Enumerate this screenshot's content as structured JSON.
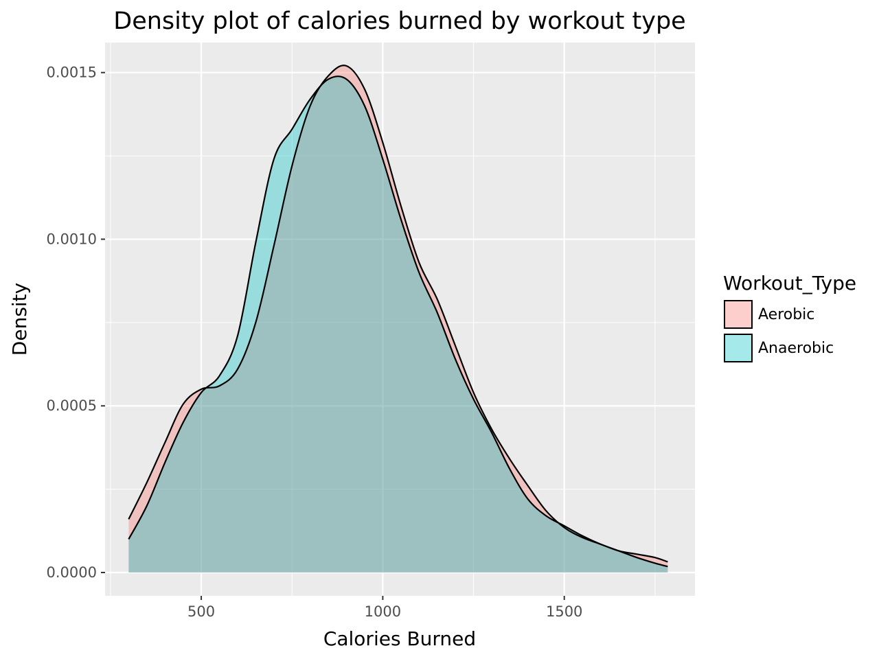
{
  "chart_data": {
    "type": "area",
    "subtype": "density",
    "title": "Density plot of calories burned by workout type",
    "xlabel": "Calories Burned",
    "ylabel": "Density",
    "xlim": [
      235,
      1860
    ],
    "ylim": [
      -7e-05,
      0.00159
    ],
    "x_ticks": [
      500,
      1000,
      1500
    ],
    "x_tick_labels": [
      "500",
      "1000",
      "1500"
    ],
    "x_minor_ticks": [
      250,
      750,
      1250,
      1750
    ],
    "y_ticks": [
      0.0,
      0.0005,
      0.001,
      0.0015
    ],
    "y_tick_labels": [
      "0.0000",
      "0.0005",
      "0.0010",
      "0.0015"
    ],
    "y_minor_ticks": [
      0.00025,
      0.00075,
      0.00125
    ],
    "grid": true,
    "panel_background": "#ebebeb",
    "legend": {
      "title": "Workout_Type",
      "position": "right",
      "entries": [
        "Aerobic",
        "Anaerobic"
      ]
    },
    "series": [
      {
        "name": "Aerobic",
        "color": "#f8766d",
        "x": [
          300,
          350,
          400,
          450,
          500,
          550,
          600,
          650,
          700,
          750,
          800,
          850,
          900,
          950,
          1000,
          1050,
          1100,
          1150,
          1200,
          1250,
          1300,
          1350,
          1400,
          1450,
          1500,
          1550,
          1600,
          1650,
          1700,
          1750,
          1785
        ],
        "y": [
          0.00016,
          0.00027,
          0.00039,
          0.000505,
          0.00055,
          0.00056,
          0.00061,
          0.00075,
          0.00098,
          0.00122,
          0.0014,
          0.00149,
          0.00152,
          0.00145,
          0.00129,
          0.0011,
          0.00093,
          0.00082,
          0.00068,
          0.00054,
          0.00043,
          0.00034,
          0.00026,
          0.000185,
          0.000135,
          0.000105,
          8.5e-05,
          6.5e-05,
          5.5e-05,
          4.5e-05,
          3.2e-05
        ]
      },
      {
        "name": "Anaerobic",
        "color": "#00bfc4",
        "x": [
          300,
          350,
          400,
          450,
          500,
          550,
          600,
          650,
          700,
          750,
          800,
          850,
          900,
          950,
          1000,
          1050,
          1100,
          1150,
          1200,
          1250,
          1300,
          1350,
          1400,
          1450,
          1500,
          1550,
          1600,
          1650,
          1700,
          1750,
          1785
        ],
        "y": [
          0.0001,
          0.0002,
          0.00033,
          0.00045,
          0.00054,
          0.00059,
          0.00071,
          0.00099,
          0.00124,
          0.00133,
          0.00142,
          0.00148,
          0.00148,
          0.0014,
          0.00124,
          0.00106,
          0.0009,
          0.00078,
          0.00064,
          0.00052,
          0.00042,
          0.00031,
          0.00022,
          0.00017,
          0.00014,
          0.00011,
          8.5e-05,
          6.5e-05,
          4.5e-05,
          2.8e-05,
          1.8e-05
        ]
      }
    ]
  }
}
